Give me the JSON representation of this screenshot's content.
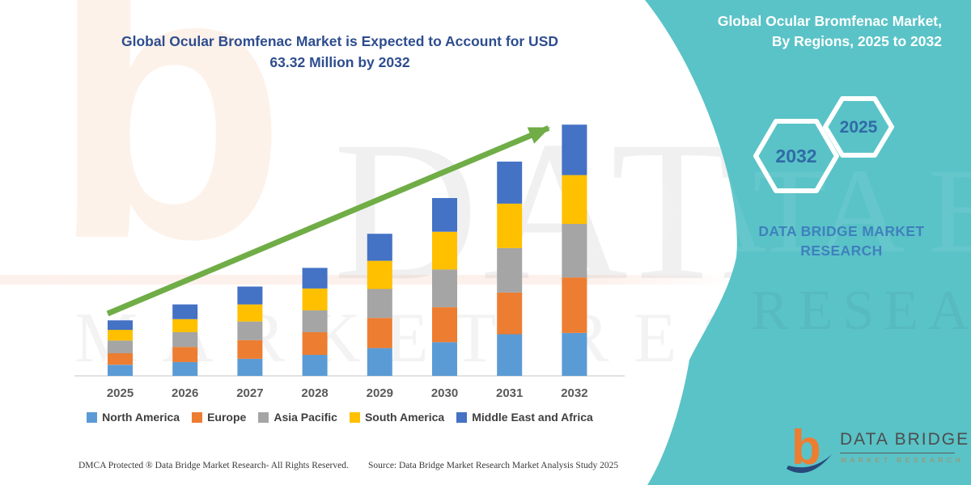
{
  "header": {
    "title_lines": [
      "Global Ocular Bromfenac Market is Expected to Account for USD",
      "63.32 Million by 2032"
    ]
  },
  "panel": {
    "header_lines": [
      "Global Ocular Bromfenac Market,",
      "By Regions, 2025 to 2032"
    ],
    "hex_left_year": "2032",
    "hex_right_year": "2025",
    "brand_lines": [
      "DATA BRIDGE MARKET",
      "RESEARCH"
    ],
    "logo_name": "DATA BRIDGE",
    "logo_sub": "MARKET RESEARCH"
  },
  "footer": {
    "left": "DMCA Protected ® Data Bridge Market Research-  All Rights Reserved.",
    "source": "Source: Data Bridge Market Research  Market Analysis Study 2025"
  },
  "watermarks": {
    "logo_b": "b",
    "brand_big": "DATA BRIDGE",
    "market_row": "MARKET RESEARCH",
    "panel_top": "DATA BRIDGE",
    "panel_bottom": "RESEARCH"
  },
  "colors": {
    "teal": "#5ac3c7",
    "title_blue": "#2e4d8f",
    "arrow_green": "#70AD47",
    "axis_gray": "#d9d9d9"
  },
  "chart_data": {
    "type": "bar",
    "stacked": true,
    "title": "Global Ocular Bromfenac Market is Expected to Account for USD 63.32 Million by 2032",
    "unit": "USD Million",
    "categories": [
      "2025",
      "2026",
      "2027",
      "2028",
      "2029",
      "2030",
      "2031",
      "2032"
    ],
    "series": [
      {
        "name": "North America",
        "color": "#5B9BD5",
        "values": [
          2.8,
          3.5,
          4.3,
          5.3,
          7.0,
          8.5,
          10.5,
          10.8
        ]
      },
      {
        "name": "Europe",
        "color": "#ED7D31",
        "values": [
          2.9,
          3.8,
          4.7,
          5.7,
          7.6,
          8.8,
          10.5,
          14.0
        ]
      },
      {
        "name": "Asia Pacific",
        "color": "#A5A5A5",
        "values": [
          3.2,
          3.7,
          4.7,
          5.5,
          7.3,
          9.5,
          11.2,
          13.5
        ]
      },
      {
        "name": "South America",
        "color": "#FFC000",
        "values": [
          2.7,
          3.3,
          4.3,
          5.5,
          7.1,
          9.5,
          11.2,
          12.3
        ]
      },
      {
        "name": "Middle East and Africa",
        "color": "#4472C4",
        "values": [
          2.4,
          3.7,
          4.5,
          5.2,
          6.8,
          8.5,
          10.6,
          12.7
        ]
      }
    ],
    "totals": [
      14.0,
      18.0,
      22.5,
      27.2,
      35.8,
      44.8,
      54.0,
      63.32
    ],
    "annotation": "63.32 Million by 2032",
    "y_axis_visible": false,
    "gridlines": false,
    "legend_position": "bottom",
    "trend_arrow": true
  }
}
